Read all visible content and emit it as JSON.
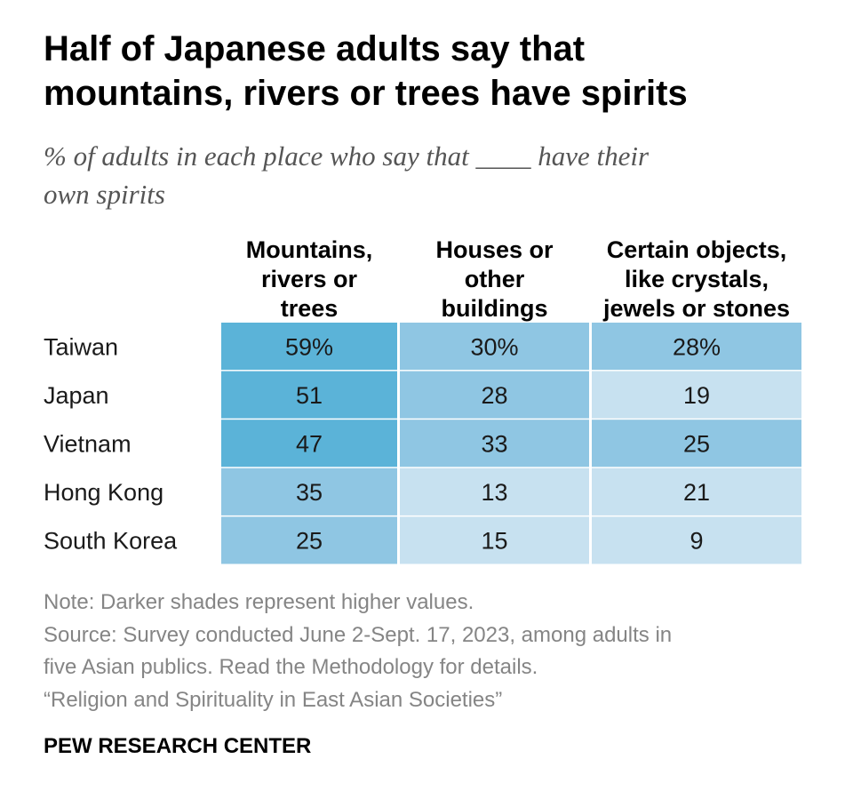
{
  "title_line1": "Half of Japanese adults say that",
  "title_line2": "mountains, rivers or trees have spirits",
  "subtitle_line1": "% of adults in each place who say that ____ have their",
  "subtitle_line2": "own spirits",
  "colors": {
    "shade_dark": "#5bb3d8",
    "shade_medium": "#8fc6e3",
    "shade_light": "#c7e1f0",
    "cell_text": "#1a1a1a",
    "divider": "#ffffff"
  },
  "chart_data": {
    "type": "table",
    "columns": [
      [
        "Mountains,",
        "rivers or",
        "trees"
      ],
      [
        "Houses or",
        "other",
        "buildings"
      ],
      [
        "Certain objects,",
        "like crystals,",
        "jewels or stones"
      ]
    ],
    "rows": [
      "Taiwan",
      "Japan",
      "Vietnam",
      "Hong Kong",
      "South Korea"
    ],
    "values": [
      [
        59,
        30,
        28
      ],
      [
        51,
        28,
        19
      ],
      [
        47,
        33,
        25
      ],
      [
        35,
        13,
        21
      ],
      [
        25,
        15,
        9
      ]
    ],
    "labels": [
      [
        "59%",
        "30%",
        "28%"
      ],
      [
        "51",
        "28",
        "19"
      ],
      [
        "47",
        "33",
        "25"
      ],
      [
        "35",
        "13",
        "21"
      ],
      [
        "25",
        "15",
        "9"
      ]
    ]
  },
  "notes": {
    "note": "Note: Darker shades represent higher values.",
    "source_line1": "Source: Survey conducted June 2-Sept. 17, 2023, among adults in",
    "source_line2": "five Asian publics. Read the Methodology for details.",
    "report": "“Religion and Spirituality in East Asian Societies”"
  },
  "brand": "PEW RESEARCH CENTER"
}
